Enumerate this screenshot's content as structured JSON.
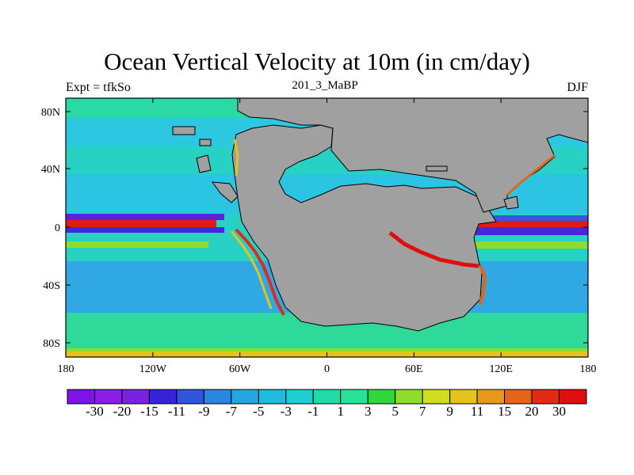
{
  "chart_data": {
    "type": "heatmap",
    "title": "Ocean Vertical Velocity at 10m (in cm/day)",
    "left_label": "Expt = tfkSo",
    "center_label": "201_3_MaBP",
    "right_label": "DJF",
    "x_ticks": [
      "180",
      "120W",
      "60W",
      "0",
      "60E",
      "120E",
      "180"
    ],
    "y_ticks": [
      "80N",
      "40N",
      "0",
      "40S",
      "80S"
    ],
    "xlim": [
      -180,
      180
    ],
    "ylim": [
      -90,
      90
    ],
    "colorbar": {
      "labels": [
        "-30",
        "-20",
        "-15",
        "-11",
        "-9",
        "-7",
        "-5",
        "-3",
        "-1",
        "1",
        "3",
        "5",
        "7",
        "9",
        "11",
        "15",
        "20",
        "30"
      ],
      "colors": [
        "#7f12e6",
        "#8a1ee8",
        "#7a22e2",
        "#3522d9",
        "#2f55dd",
        "#2a86e0",
        "#24a6e3",
        "#20bcdf",
        "#1dcfd0",
        "#1fdca6",
        "#27e39a",
        "#2fd63c",
        "#8fdc2a",
        "#cfde1f",
        "#e5c21c",
        "#e59a1c",
        "#e5641a",
        "#e22a16",
        "#e00e0e"
      ]
    },
    "land_color": "#a0a0a0"
  }
}
